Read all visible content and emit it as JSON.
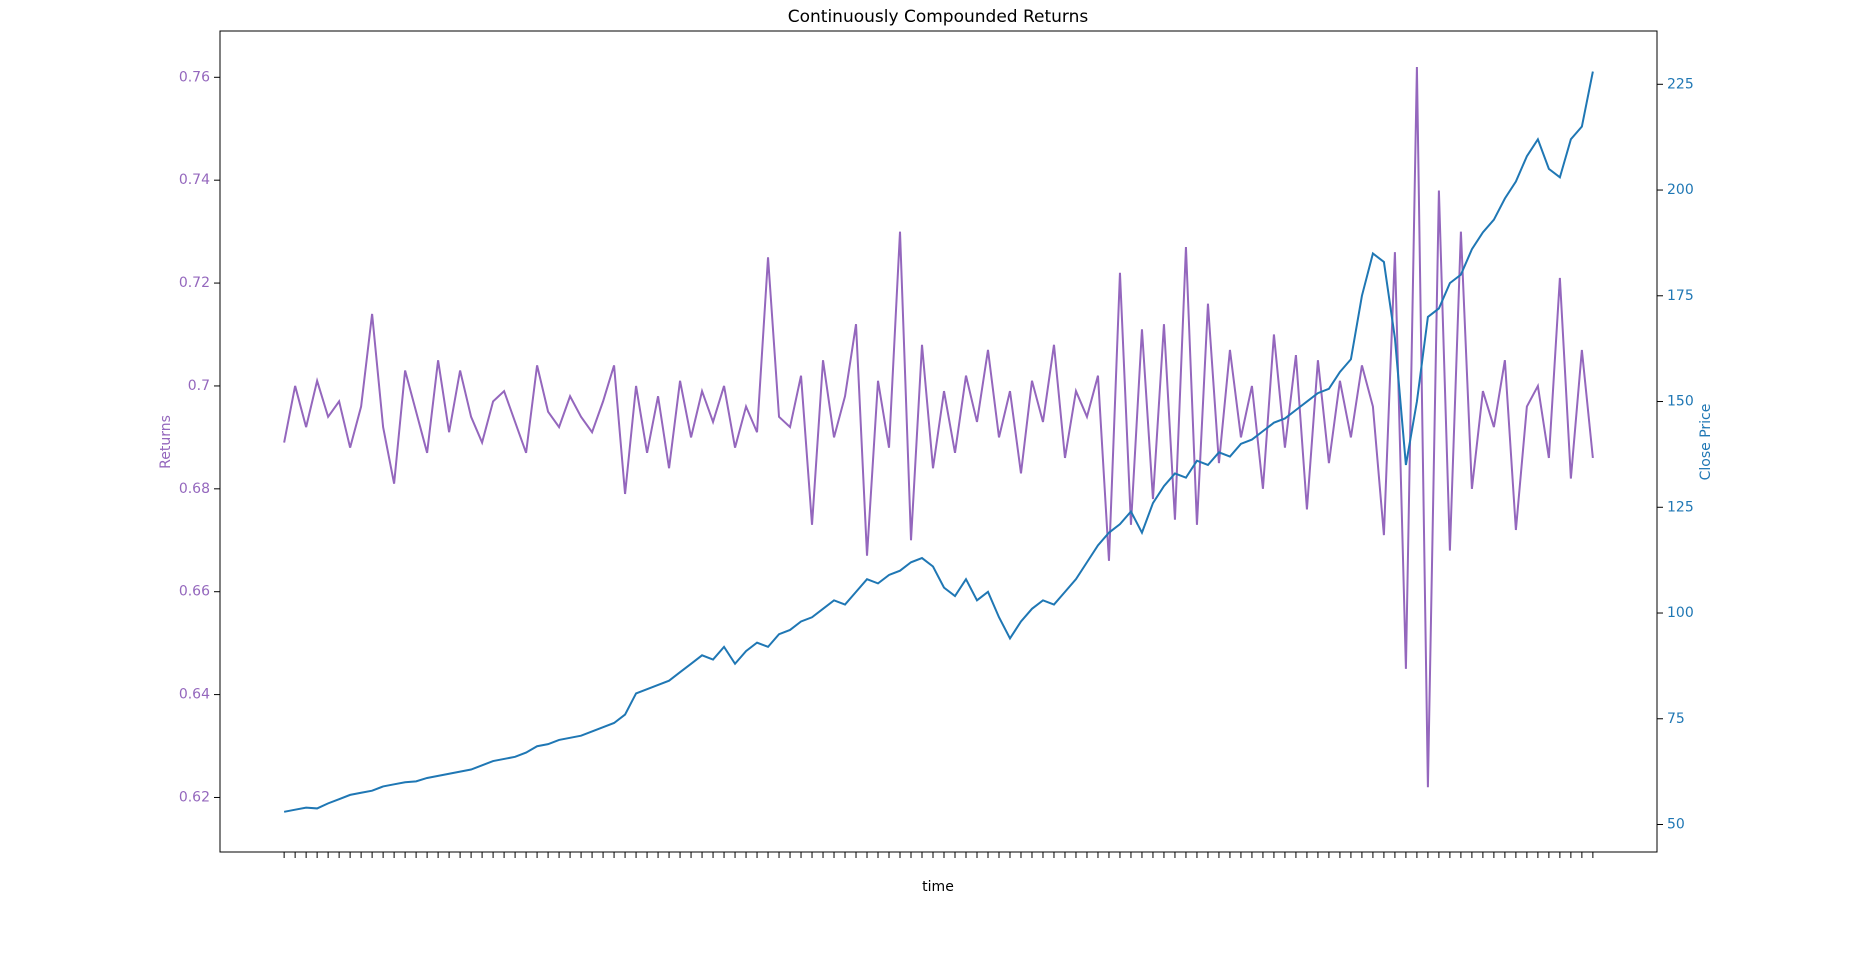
{
  "chart_data": {
    "type": "line",
    "title": "Continuously Compounded Returns",
    "x_label": "time",
    "y_label": "Returns",
    "y2_label": "Close Price",
    "categories": [
      null,
      null,
      null,
      null,
      null,
      null,
      null,
      null,
      null,
      null,
      null,
      null,
      null,
      null,
      null,
      null,
      null,
      null,
      null,
      null,
      null,
      null,
      null,
      null,
      null,
      null,
      null,
      null,
      null,
      null,
      null,
      null,
      null,
      null,
      null,
      null,
      null,
      null,
      null,
      null,
      null,
      null,
      null,
      null,
      null,
      null,
      null,
      null,
      null,
      null,
      null,
      null,
      null,
      null,
      null,
      null,
      null,
      null,
      null,
      null,
      null,
      null,
      null,
      null,
      null,
      null,
      null,
      null,
      null,
      null,
      null,
      null,
      null,
      null,
      null,
      null,
      null,
      null,
      null,
      null,
      null,
      null,
      null,
      null,
      null,
      null,
      null,
      null,
      null,
      null,
      null,
      null,
      null,
      null,
      null,
      null,
      null,
      null,
      null,
      null,
      null,
      null,
      null,
      null,
      null,
      null,
      null,
      null,
      null,
      null,
      null,
      null,
      null,
      null,
      null,
      null,
      null,
      null,
      null,
      null
    ],
    "series": [
      {
        "color": "#9467bd",
        "axis": "y",
        "values": [
          0.689,
          0.7,
          0.692,
          0.701,
          0.694,
          0.697,
          0.688,
          0.696,
          0.714,
          0.692,
          0.681,
          0.703,
          0.695,
          0.687,
          0.705,
          0.691,
          0.703,
          0.694,
          0.689,
          0.697,
          0.699,
          0.693,
          0.687,
          0.704,
          0.695,
          0.692,
          0.698,
          0.694,
          0.691,
          0.697,
          0.704,
          0.679,
          0.7,
          0.687,
          0.698,
          0.684,
          0.701,
          0.69,
          0.699,
          0.693,
          0.7,
          0.688,
          0.696,
          0.691,
          0.725,
          0.694,
          0.692,
          0.702,
          0.673,
          0.705,
          0.69,
          0.698,
          0.712,
          0.667,
          0.701,
          0.688,
          0.73,
          0.67,
          0.708,
          0.684,
          0.699,
          0.687,
          0.702,
          0.693,
          0.707,
          0.69,
          0.699,
          0.683,
          0.701,
          0.693,
          0.708,
          0.686,
          0.699,
          0.694,
          0.702,
          0.666,
          0.722,
          0.673,
          0.711,
          0.678,
          0.712,
          0.674,
          0.727,
          0.673,
          0.716,
          0.685,
          0.707,
          0.69,
          0.7,
          0.68,
          0.71,
          0.688,
          0.706,
          0.676,
          0.705,
          0.685,
          0.701,
          0.69,
          0.704,
          0.696,
          0.671,
          0.726,
          0.645,
          0.762,
          0.622,
          0.738,
          0.668,
          0.73,
          0.68,
          0.699,
          0.692,
          0.705,
          0.672,
          0.696,
          0.7,
          0.686,
          0.721,
          0.682,
          0.707,
          0.686
        ]
      },
      {
        "color": "#1f77b4",
        "axis": "y2",
        "values": [
          53,
          53.5,
          54,
          53.8,
          55,
          56,
          57,
          57.5,
          58,
          59,
          59.5,
          60,
          60.2,
          61,
          61.5,
          62,
          62.5,
          63,
          64,
          65,
          65.5,
          66,
          67,
          68.5,
          69,
          70,
          70.5,
          71,
          72,
          73,
          74,
          76,
          81,
          82,
          83,
          84,
          86,
          88,
          90,
          89,
          92,
          88,
          91,
          93,
          92,
          95,
          96,
          98,
          99,
          101,
          103,
          102,
          105,
          108,
          107,
          109,
          110,
          112,
          113,
          111,
          106,
          104,
          108,
          103,
          105,
          99,
          94,
          98,
          101,
          103,
          102,
          105,
          108,
          112,
          116,
          119,
          121,
          124,
          119,
          126,
          130,
          133,
          132,
          136,
          135,
          138,
          137,
          140,
          141,
          143,
          145,
          146,
          148,
          150,
          152,
          153,
          157,
          160,
          175,
          185,
          183,
          165,
          135,
          150,
          170,
          172,
          178,
          180,
          186,
          190,
          193,
          198,
          202,
          208,
          212,
          205,
          203,
          212,
          215,
          228
        ]
      }
    ],
    "ylim": [
      0.6094,
      0.769
    ],
    "yticks": [
      0.62,
      0.64,
      0.66,
      0.68,
      0.7,
      0.72,
      0.74,
      0.76
    ],
    "y2lim": [
      43.5,
      237.6
    ],
    "y2ticks": [
      50,
      75,
      100,
      125,
      150,
      175,
      200,
      225
    ]
  }
}
